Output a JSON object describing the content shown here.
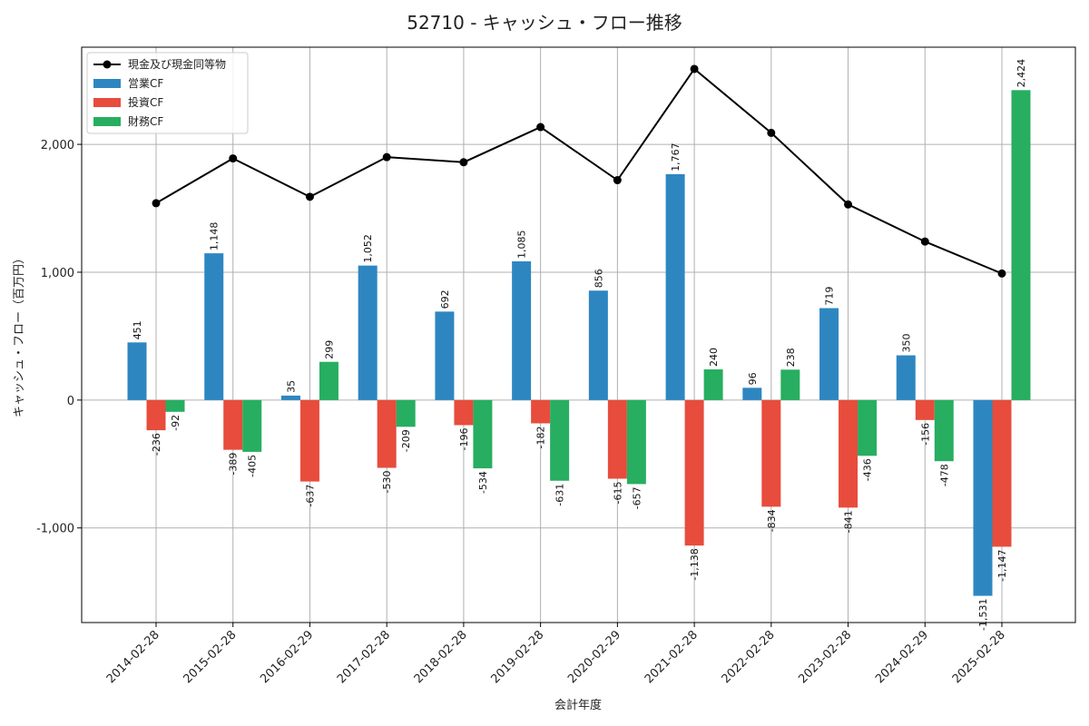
{
  "chart_data": {
    "type": "bar",
    "title": "52710 - キャッシュ・フロー推移",
    "xlabel": "会計年度",
    "ylabel": "キャッシュ・フロー（百万円）",
    "categories": [
      "2014-02-28",
      "2015-02-28",
      "2016-02-29",
      "2017-02-28",
      "2018-02-28",
      "2019-02-28",
      "2020-02-29",
      "2021-02-28",
      "2022-02-28",
      "2023-02-28",
      "2024-02-29",
      "2025-02-28"
    ],
    "ylim": [
      -1740,
      2760
    ],
    "yticks": [
      -1000,
      0,
      1000,
      2000
    ],
    "ytick_labels": [
      "-1,000",
      "0",
      "1,000",
      "2,000"
    ],
    "grid": true,
    "legend_position": "top-left",
    "series": [
      {
        "name": "営業CF",
        "kind": "bar",
        "color": "#2e86c1",
        "values": [
          451,
          1148,
          35,
          1052,
          692,
          1085,
          856,
          1767,
          96,
          719,
          350,
          -1531
        ],
        "labels": [
          "451",
          "1,148",
          "35",
          "1,052",
          "692",
          "1,085",
          "856",
          "1,767",
          "96",
          "719",
          "350",
          "-1,531"
        ]
      },
      {
        "name": "投資CF",
        "kind": "bar",
        "color": "#e74c3c",
        "values": [
          -236,
          -389,
          -637,
          -530,
          -196,
          -182,
          -615,
          -1138,
          -834,
          -841,
          -156,
          -1147
        ],
        "labels": [
          "-236",
          "-389",
          "-637",
          "-530",
          "-196",
          "-182",
          "-615",
          "-1,138",
          "-834",
          "-841",
          "-156",
          "-1,147"
        ]
      },
      {
        "name": "財務CF",
        "kind": "bar",
        "color": "#27ae60",
        "values": [
          -92,
          -405,
          299,
          -209,
          -534,
          -631,
          -657,
          240,
          238,
          -436,
          -478,
          2424
        ],
        "labels": [
          "-92",
          "-405",
          "299",
          "-209",
          "-534",
          "-631",
          "-657",
          "240",
          "238",
          "-436",
          "-478",
          "2,424"
        ]
      },
      {
        "name": "現金及び現金同等物",
        "kind": "line",
        "color": "#000000",
        "values": [
          1540,
          1890,
          1590,
          1900,
          1860,
          2135,
          1720,
          2590,
          2090,
          1530,
          1240,
          990
        ]
      }
    ]
  }
}
